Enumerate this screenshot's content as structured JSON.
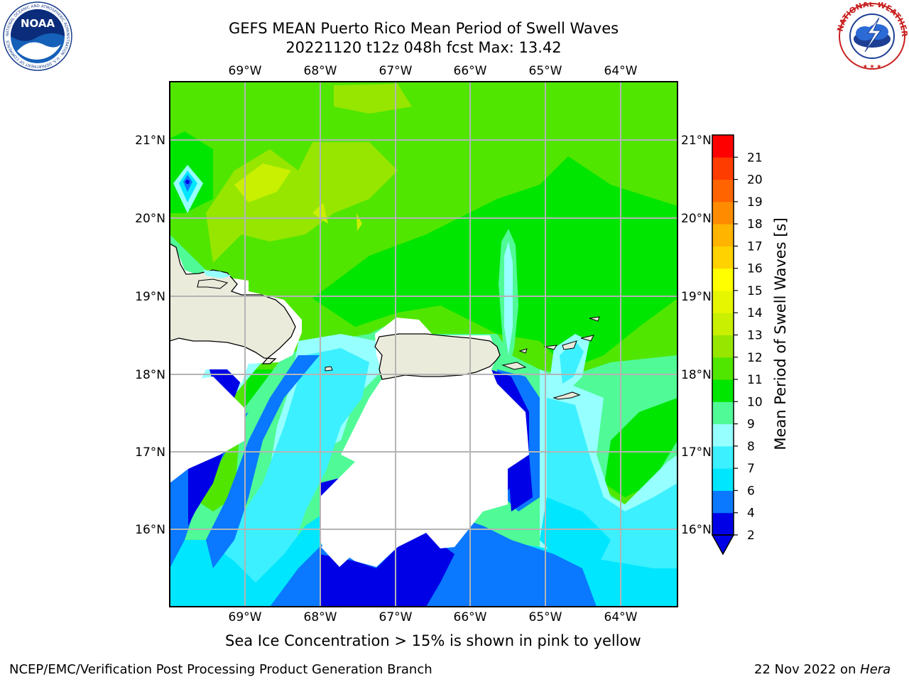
{
  "header": {
    "title_line1": "GEFS MEAN Puerto Rico Mean Period of Swell Waves",
    "title_line2": "20221120 t12z 048h fcst   Max: 13.42"
  },
  "map": {
    "lon_labels": [
      "69°W",
      "68°W",
      "67°W",
      "66°W",
      "65°W",
      "64°W"
    ],
    "lat_labels": [
      "21°N",
      "20°N",
      "19°N",
      "18°N",
      "17°N",
      "16°N"
    ]
  },
  "colorbar": {
    "label": "Mean Period of Swell Waves [s]",
    "ticks": [
      "2",
      "4",
      "6",
      "7",
      "8",
      "9",
      "10",
      "11",
      "12",
      "13",
      "14",
      "15",
      "16",
      "17",
      "18",
      "19",
      "20",
      "21"
    ],
    "colors": [
      "#0000e6",
      "#0a78ff",
      "#00e6ff",
      "#3cf0ff",
      "#96ffff",
      "#50fa96",
      "#00e600",
      "#50e600",
      "#96e600",
      "#c8f000",
      "#e6f500",
      "#ffff00",
      "#ffd200",
      "#ffb400",
      "#ff8c00",
      "#ff6400",
      "#ff3c00",
      "#ff0000"
    ],
    "underflow_color": "#0000e6"
  },
  "footer": {
    "sea_ice_note": "Sea Ice Concentration > 15% is shown in pink to yellow",
    "producer": "NCEP/EMC/Verification Post Processing Product Generation Branch",
    "date": "22 Nov 2022 on ",
    "machine": "Hera"
  },
  "logos": {
    "noaa": "NOAA",
    "noaa_ring": "NATIONAL OCEANIC AND ATMOSPHERIC ADMINISTRATION · U.S. DEPARTMENT OF COMMERCE",
    "nws_ring": "NATIONAL WEATHER SERVICE"
  }
}
